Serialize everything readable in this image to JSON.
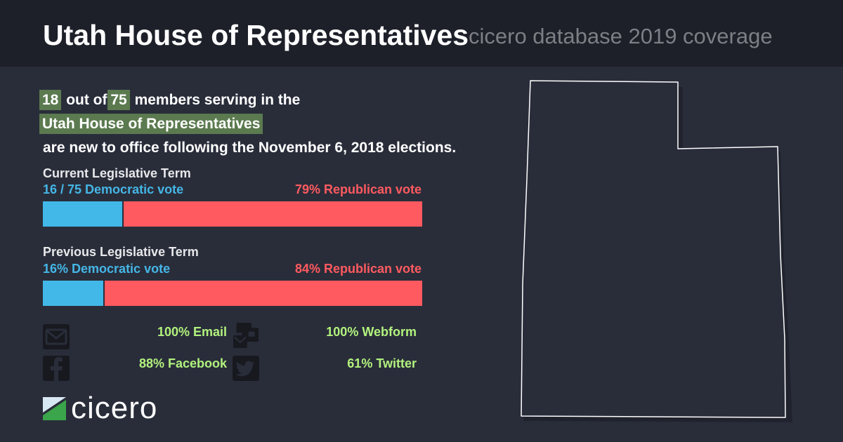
{
  "header": {
    "title": "Utah House of Representatives",
    "subtitle": "cicero database 2019 coverage"
  },
  "summary": {
    "new_count": "18",
    "out_of": "out of",
    "total": "75",
    "members_text": "members serving in the",
    "body_name": "Utah House of Representatives",
    "line3": "are new to office following the November 6, 2018 elections."
  },
  "current_term": {
    "label": "Current Legislative Term",
    "dem_text": "16 / 75 Democratic vote",
    "rep_text": "79% Republican vote",
    "dem_share": 0.21,
    "rep_share": 0.79,
    "other_share": 0.0
  },
  "previous_term": {
    "label": "Previous Legislative Term",
    "dem_text": "16% Democratic vote",
    "rep_text": "84% Republican vote",
    "dem_share": 0.16,
    "rep_share": 0.84,
    "other_share": 0.0
  },
  "contact": {
    "email": "100% Email",
    "webform": "100% Webform",
    "facebook": "88% Facebook",
    "twitter": "61% Twitter"
  },
  "logo": {
    "text": "cicero"
  },
  "colors": {
    "democratic": "#42b8e8",
    "republican": "#ff5a5f",
    "other": "#d6d6d6",
    "highlight": "#5b7a4f",
    "contact_stat": "#b2f27d"
  },
  "icons": {
    "email": "envelope-icon",
    "webform": "webform-icon",
    "facebook": "facebook-icon",
    "twitter": "twitter-icon",
    "state": "utah-outline"
  }
}
